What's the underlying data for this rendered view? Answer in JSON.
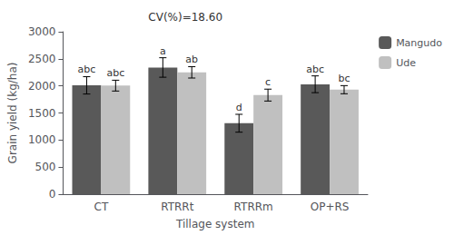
{
  "chart_data": {
    "type": "bar",
    "categories": [
      "CT",
      "RTRRt",
      "RTRRm",
      "OP+RS"
    ],
    "series": [
      {
        "name": "Mangudo",
        "color": "#595959",
        "values": [
          2010,
          2340,
          1310,
          2030
        ],
        "errors": [
          160,
          180,
          165,
          155
        ],
        "annotations": [
          "abc",
          "a",
          "d",
          "abc"
        ]
      },
      {
        "name": "Ude",
        "color": "#c0c0c0",
        "values": [
          2005,
          2250,
          1830,
          1930
        ],
        "errors": [
          100,
          105,
          110,
          75
        ],
        "annotations": [
          "abc",
          "ab",
          "c",
          "bc"
        ]
      }
    ],
    "xlabel": "Tillage system",
    "ylabel": "Grain yield (kg/ha)",
    "annotation": "CV(%)=18.60",
    "ylim": [
      0,
      3000
    ],
    "yticks": [
      0,
      500,
      1000,
      1500,
      2000,
      2500,
      3000
    ],
    "grid": false,
    "legend": "right"
  }
}
